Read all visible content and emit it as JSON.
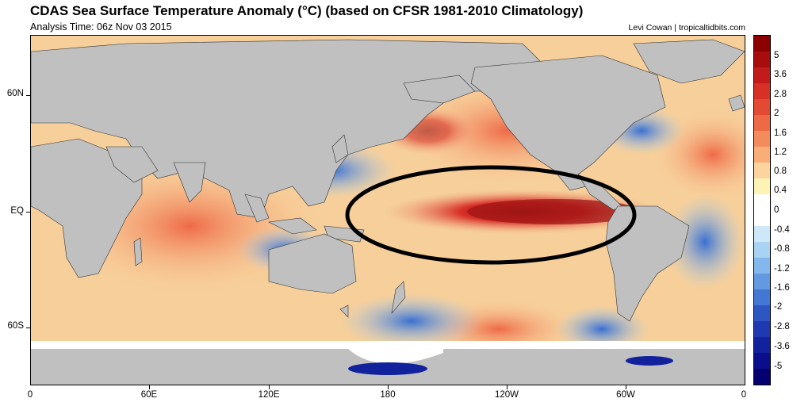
{
  "header": {
    "title": "CDAS Sea Surface Temperature Anomaly (°C) (based on CFSR 1981-2010 Climatology)",
    "analysis_time": "Analysis Time: 06z Nov 03 2015",
    "credit": "Levi Cowan | tropicaltidbits.com"
  },
  "map": {
    "y_ticks": [
      "60N",
      "EQ",
      "60S"
    ],
    "x_ticks": [
      "0",
      "60E",
      "120E",
      "180",
      "120W",
      "60W",
      "0"
    ],
    "land_color": "#c0c0c0",
    "annotation": "black ellipse around equatorial eastern Pacific warm anomaly"
  },
  "colorbar": {
    "labels": [
      "5",
      "3.6",
      "2.8",
      "2",
      "1.6",
      "1.2",
      "0.8",
      "0.4",
      "0",
      "-0.4",
      "-0.8",
      "-1.2",
      "-1.6",
      "-2",
      "-2.8",
      "-3.6",
      "-5"
    ],
    "colors": [
      "#8b0000",
      "#a80d0d",
      "#c21b1b",
      "#d73027",
      "#e34a33",
      "#ee6a47",
      "#f48b5e",
      "#f9ad78",
      "#fdd49e",
      "#fdf3b5",
      "#ffffff",
      "#ffffff",
      "#cfe8f8",
      "#a9d2f3",
      "#84b8ec",
      "#6399e0",
      "#4278d3",
      "#2e56c2",
      "#1f3ab0",
      "#12219c",
      "#0a0e8a",
      "#050070"
    ]
  }
}
